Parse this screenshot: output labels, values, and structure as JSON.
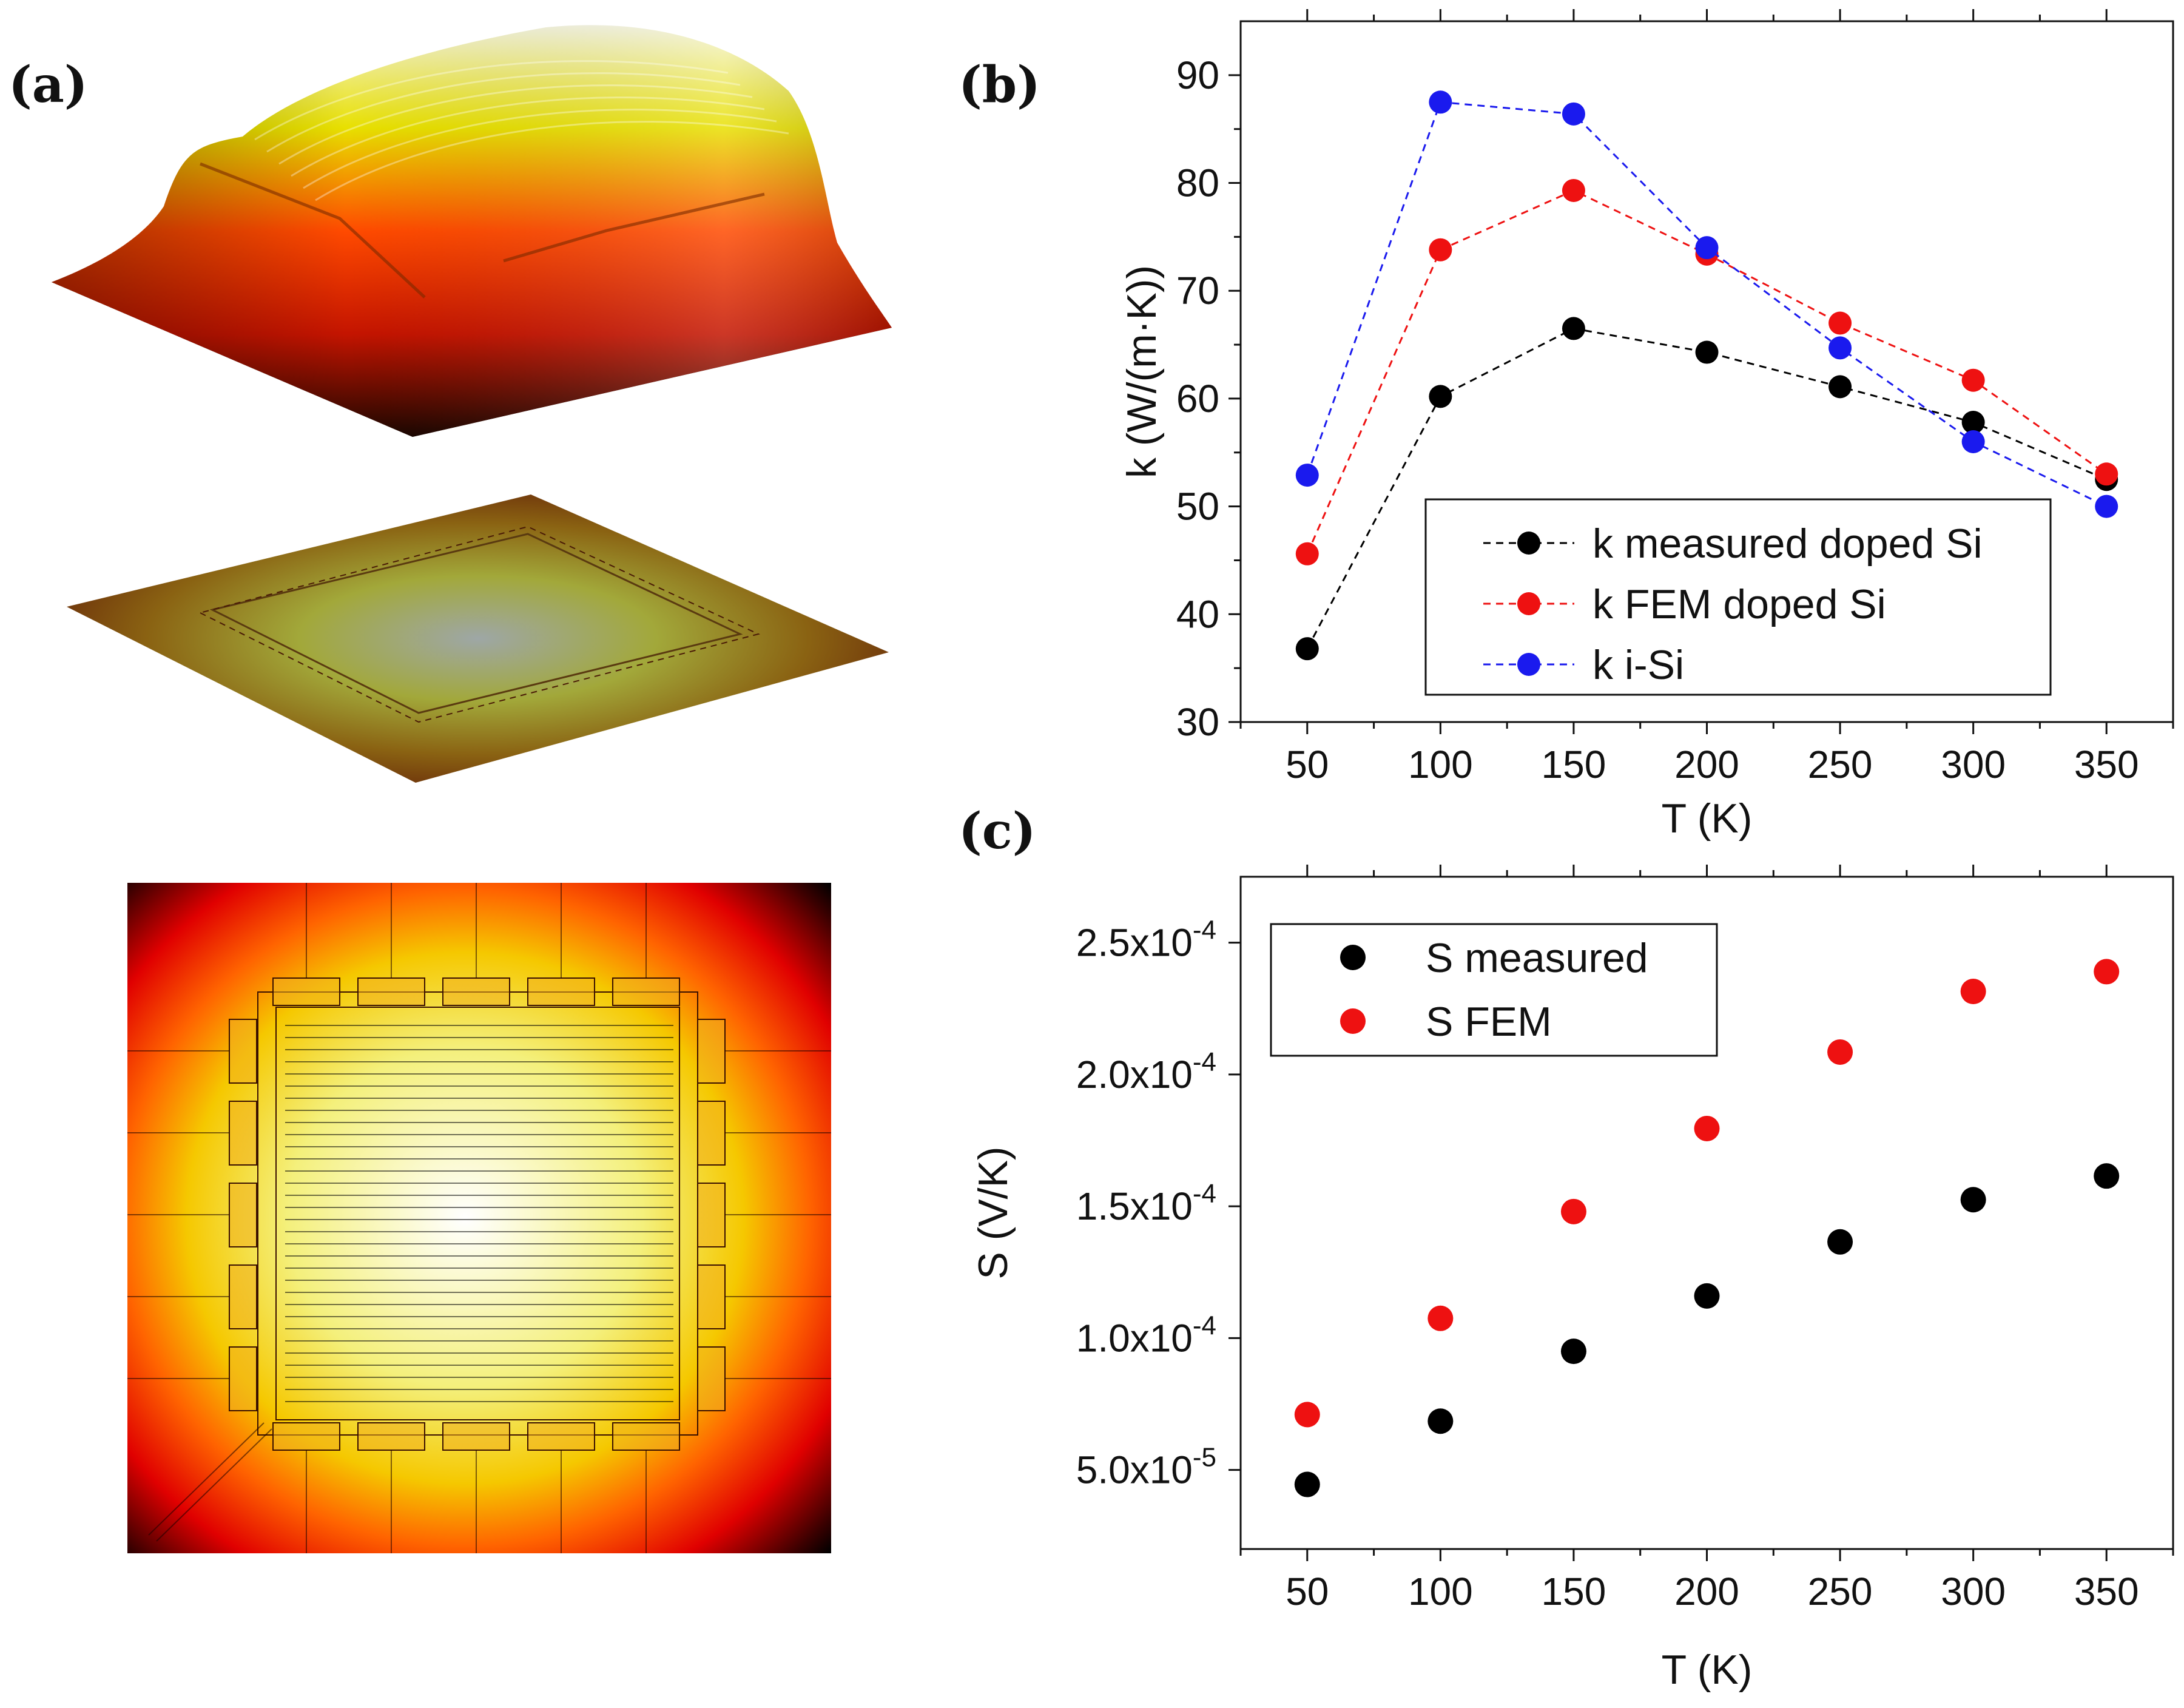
{
  "panels": {
    "a": "(a)",
    "b": "(b)",
    "c": "(c)"
  },
  "colors": {
    "black": "#000000",
    "red": "#ee1111",
    "blue": "#1a1aee"
  },
  "chart_data": [
    {
      "id": "b",
      "type": "line",
      "xlabel": "T (K)",
      "ylabel": "k (W/(m·K))",
      "xlim": [
        25,
        375
      ],
      "ylim": [
        30,
        95
      ],
      "xticks": [
        50,
        100,
        150,
        200,
        250,
        300,
        350
      ],
      "yticks": [
        30,
        40,
        50,
        60,
        70,
        80,
        90
      ],
      "x": [
        50,
        100,
        150,
        200,
        250,
        300,
        350
      ],
      "legend_position": "bottom-right",
      "series": [
        {
          "name": "k measured doped Si",
          "color": "#000000",
          "values": [
            36.8,
            60.2,
            66.5,
            64.3,
            61.1,
            57.8,
            52.5
          ]
        },
        {
          "name": "k FEM doped Si",
          "color": "#ee1111",
          "values": [
            45.6,
            73.8,
            79.3,
            73.4,
            67.0,
            61.7,
            53.0
          ]
        },
        {
          "name": "k i-Si",
          "color": "#1a1aee",
          "values": [
            52.9,
            87.5,
            86.4,
            74.0,
            64.7,
            56.0,
            50.0
          ]
        }
      ]
    },
    {
      "id": "c",
      "type": "scatter",
      "xlabel": "T (K)",
      "ylabel": "S (V/K)",
      "xlim": [
        25,
        375
      ],
      "ylim": [
        2e-05,
        0.000275
      ],
      "xticks": [
        50,
        100,
        150,
        200,
        250,
        300,
        350
      ],
      "yticks": [
        5e-05,
        0.0001,
        0.00015,
        0.0002,
        0.00025
      ],
      "ytick_labels": [
        {
          "mantissa": "5.0x10",
          "exp": "-5"
        },
        {
          "mantissa": "1.0x10",
          "exp": "-4"
        },
        {
          "mantissa": "1.5x10",
          "exp": "-4"
        },
        {
          "mantissa": "2.0x10",
          "exp": "-4"
        },
        {
          "mantissa": "2.5x10",
          "exp": "-4"
        }
      ],
      "x": [
        50,
        100,
        150,
        200,
        250,
        300,
        350
      ],
      "legend_position": "top-left",
      "series": [
        {
          "name": "S measured",
          "color": "#000000",
          "values": [
            4.45e-05,
            6.85e-05,
            9.5e-05,
            0.000116,
            0.0001365,
            0.0001525,
            0.0001615
          ]
        },
        {
          "name": "S FEM",
          "color": "#ee1111",
          "values": [
            7.1e-05,
            0.0001075,
            0.000148,
            0.0001795,
            0.0002085,
            0.0002315,
            0.000239
          ]
        }
      ]
    }
  ]
}
